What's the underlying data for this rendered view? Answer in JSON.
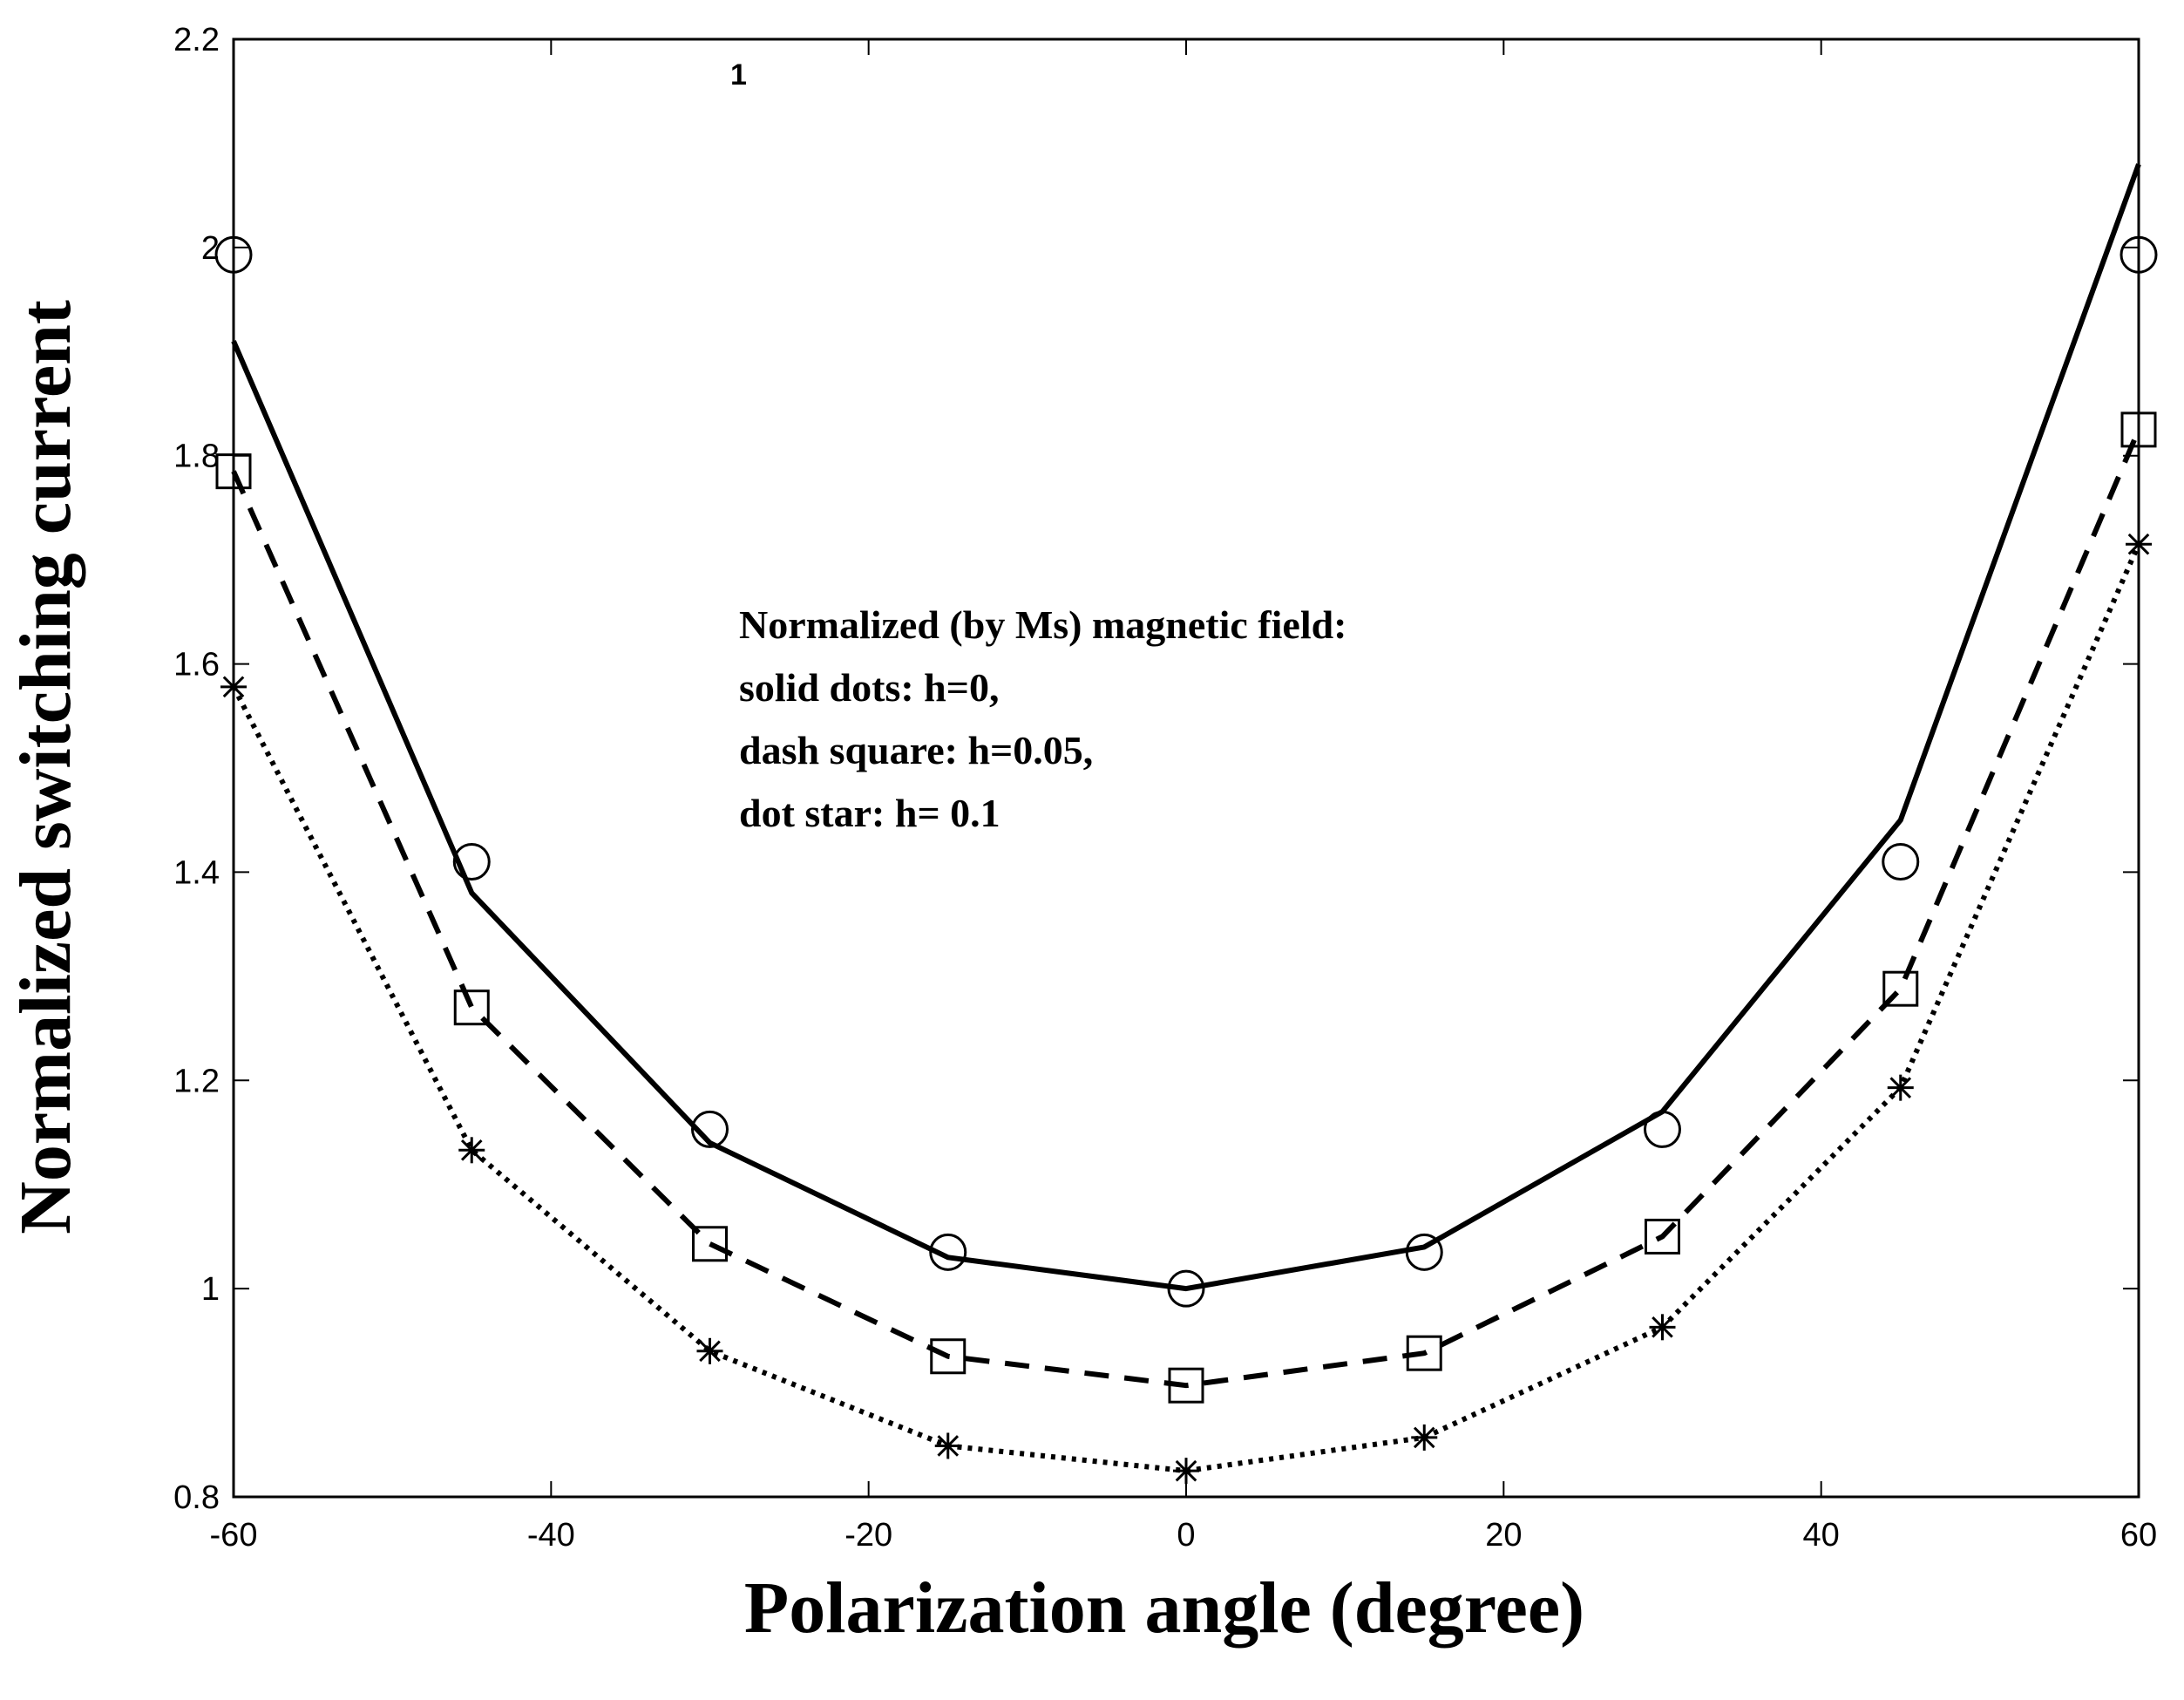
{
  "chart_data": {
    "type": "line",
    "title": "",
    "xlabel": "Polarization angle (degree)",
    "ylabel": "Normalized switching current",
    "xlim": [
      -60,
      60
    ],
    "ylim": [
      0.8,
      2.2
    ],
    "xticks": [
      -60,
      -40,
      -20,
      0,
      20,
      40,
      60
    ],
    "yticks": [
      0.8,
      1,
      1.2,
      1.4,
      1.6,
      1.8,
      2,
      2.2
    ],
    "xtick_labels": [
      "-60",
      "-40",
      "-20",
      "0",
      "20",
      "40",
      "60"
    ],
    "ytick_labels": [
      "0.8",
      "1",
      "1.2",
      "1.4",
      "1.6",
      "1.8",
      "2",
      "2.2"
    ],
    "annotation_lines": [
      "Normalized (by Ms) magnetic field:",
      "solid dots: h=0,",
      "dash square: h=0.05,",
      "dot star: h= 0.1"
    ],
    "stray_label": "1",
    "series": [
      {
        "name": "h=0",
        "line_style": "solid",
        "x": [
          -60,
          -45,
          -30,
          -15,
          0,
          15,
          30,
          45,
          60
        ],
        "y": [
          1.91,
          1.38,
          1.14,
          1.03,
          1.0,
          1.04,
          1.17,
          1.45,
          2.08
        ]
      },
      {
        "name": "h=0 markers",
        "marker": "circle",
        "x": [
          -60,
          -45,
          -30,
          -15,
          0,
          15,
          30,
          45,
          60
        ],
        "y": [
          1.993,
          1.41,
          1.153,
          1.035,
          1.0,
          1.035,
          1.153,
          1.41,
          1.993
        ]
      },
      {
        "name": "h=0.05",
        "line_style": "dash",
        "marker": "square",
        "x": [
          -60,
          -45,
          -30,
          -15,
          0,
          15,
          30,
          45,
          60
        ],
        "y": [
          1.785,
          1.27,
          1.043,
          0.935,
          0.907,
          0.938,
          1.05,
          1.288,
          1.825
        ]
      },
      {
        "name": "h=0.1",
        "line_style": "dot",
        "marker": "star",
        "x": [
          -60,
          -45,
          -30,
          -15,
          0,
          15,
          30,
          45,
          60
        ],
        "y": [
          1.578,
          1.133,
          0.94,
          0.849,
          0.825,
          0.857,
          0.963,
          1.193,
          1.715
        ]
      }
    ]
  }
}
